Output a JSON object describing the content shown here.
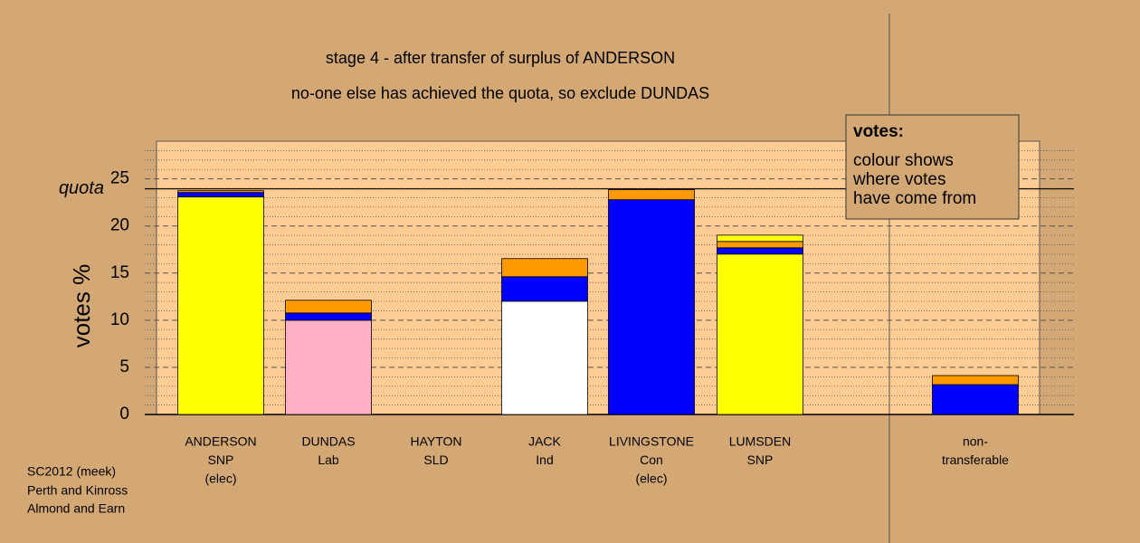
{
  "chart_data": {
    "type": "stacked-bar",
    "title": "stage 4 - after transfer of surplus of ANDERSON",
    "subtitle": "no-one else has achieved the quota, so exclude DUNDAS",
    "y_label": "votes %",
    "ylim": [
      0,
      29
    ],
    "yticks": [
      0,
      5,
      10,
      15,
      20,
      25
    ],
    "minor_yticks": [
      1,
      2,
      3,
      4,
      6,
      7,
      8,
      9,
      11,
      12,
      13,
      14,
      16,
      17,
      18,
      19,
      21,
      22,
      23,
      24,
      26,
      27,
      28
    ],
    "quota": {
      "label": "quota",
      "value": 23.94
    },
    "bars": [
      {
        "label": [
          "ANDERSON",
          "SNP",
          "(elec)"
        ],
        "segments": [
          {
            "color": "#ffff00",
            "value": 23.08
          },
          {
            "color": "#0000ff",
            "value": 0.48
          },
          {
            "color": "#ff9900",
            "value": 0.19
          }
        ]
      },
      {
        "label": [
          "DUNDAS",
          "Lab"
        ],
        "segments": [
          {
            "color": "#ffb0c4",
            "value": 10.0
          },
          {
            "color": "#0000ff",
            "value": 0.77
          },
          {
            "color": "#ff9900",
            "value": 1.35
          }
        ]
      },
      {
        "label": [
          "HAYTON",
          "SLD"
        ],
        "segments": []
      },
      {
        "label": [
          "JACK",
          "Ind"
        ],
        "segments": [
          {
            "color": "#ffffff",
            "value": 12.02
          },
          {
            "color": "#0000ff",
            "value": 2.6
          },
          {
            "color": "#ff9900",
            "value": 1.92
          }
        ]
      },
      {
        "label": [
          "LIVINGSTONE",
          "Con",
          "(elec)"
        ],
        "segments": [
          {
            "color": "#0000ff",
            "value": 22.79
          },
          {
            "color": "#ff9900",
            "value": 1.06
          }
        ]
      },
      {
        "label": [
          "LUMSDEN",
          "SNP"
        ],
        "segments": [
          {
            "color": "#ffff00",
            "value": 17.02
          },
          {
            "color": "#0000ff",
            "value": 0.67
          },
          {
            "color": "#ff9900",
            "value": 0.67
          },
          {
            "color": "#ffff00",
            "value": 0.67
          }
        ]
      },
      {
        "label": [
          "non-",
          "transferable"
        ],
        "segments": [
          {
            "color": "#0000ff",
            "value": 3.17
          },
          {
            "color": "#ff9900",
            "value": 0.96
          }
        ]
      }
    ],
    "legend": {
      "title": "votes:",
      "lines": [
        "colour shows",
        "where votes",
        "have come from"
      ]
    },
    "footer": [
      "SC2012 (meek)",
      "Perth and Kinross",
      "Almond and Earn"
    ]
  }
}
